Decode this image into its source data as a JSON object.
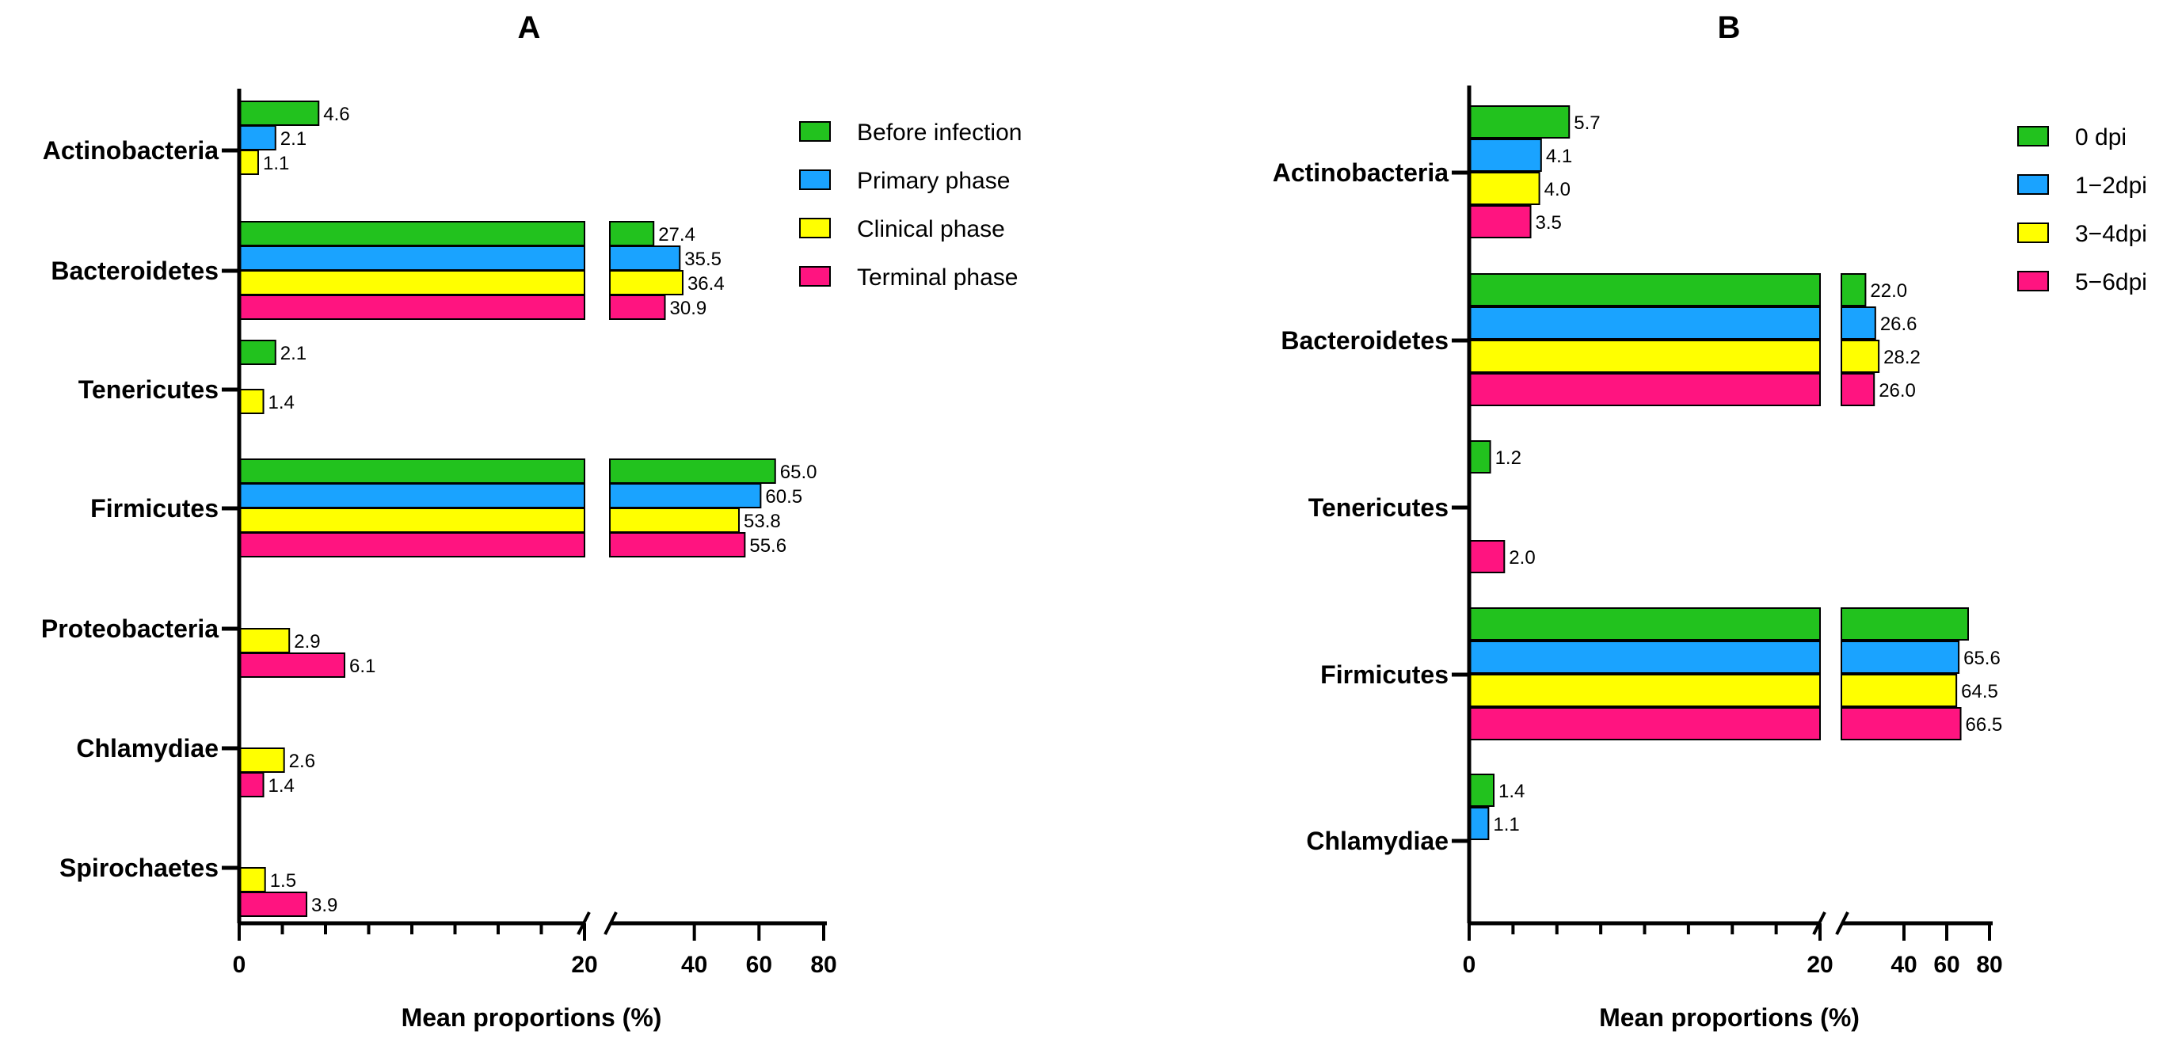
{
  "colors": {
    "green": "#22c21e",
    "blue": "#1aa3ff",
    "yellow": "#ffff00",
    "pink": "#ff1480"
  },
  "chart_data": [
    {
      "type": "bar",
      "orientation": "horizontal",
      "panel_label": "A",
      "title": "A",
      "xlabel": "Mean proportions (%)",
      "ylabel": "",
      "broken_axis": true,
      "tick_labels": [
        "0",
        "20",
        "40",
        "60",
        "80"
      ],
      "categories": [
        "Actinobacteria",
        "Bacteroidetes",
        "Tenericutes",
        "Firmicutes",
        "Proteobacteria",
        "Chlamydiae",
        "Spirochaetes"
      ],
      "legend_position": "top-right",
      "series": [
        {
          "name": "Before infection",
          "color": "green",
          "values": [
            4.6,
            27.4,
            2.1,
            65.0,
            null,
            null,
            null
          ]
        },
        {
          "name": "Primary phase",
          "color": "blue",
          "values": [
            2.1,
            35.5,
            null,
            60.5,
            null,
            null,
            null
          ]
        },
        {
          "name": "Clinical phase",
          "color": "yellow",
          "values": [
            1.1,
            36.4,
            1.4,
            53.8,
            2.9,
            2.6,
            1.5
          ]
        },
        {
          "name": "Terminal phase",
          "color": "pink",
          "values": [
            null,
            30.9,
            null,
            55.6,
            6.1,
            1.4,
            3.9
          ]
        }
      ],
      "value_labels": [
        [
          "4.6",
          "27.4",
          "2.1",
          "65.0",
          "",
          "",
          ""
        ],
        [
          "2.1",
          "35.5",
          "",
          "60.5",
          "",
          "",
          ""
        ],
        [
          "1.1",
          "36.4",
          "1.4",
          "53.8",
          "2.9",
          "2.6",
          "1.5"
        ],
        [
          "",
          "30.9",
          "",
          "55.6",
          "6.1",
          "1.4",
          "3.9"
        ]
      ]
    },
    {
      "type": "bar",
      "orientation": "horizontal",
      "panel_label": "B",
      "title": "B",
      "xlabel": "Mean proportions (%)",
      "ylabel": "",
      "broken_axis": true,
      "tick_labels": [
        "0",
        "20",
        "40",
        "60",
        "80"
      ],
      "categories": [
        "Actinobacteria",
        "Bacteroidetes",
        "Tenericutes",
        "Firmicutes",
        "Chlamydiae"
      ],
      "legend_position": "top-right",
      "series": [
        {
          "name": "0 dpi",
          "color": "green",
          "values": [
            5.7,
            22.0,
            1.2,
            70.0,
            1.4
          ]
        },
        {
          "name": "1−2dpi",
          "color": "blue",
          "values": [
            4.1,
            26.6,
            null,
            65.6,
            1.1
          ]
        },
        {
          "name": "3−4dpi",
          "color": "yellow",
          "values": [
            4.0,
            28.2,
            null,
            64.5,
            null
          ]
        },
        {
          "name": "5−6dpi",
          "color": "pink",
          "values": [
            3.5,
            26.0,
            2.0,
            66.5,
            null
          ]
        }
      ],
      "value_labels": [
        [
          "5.7",
          "22.0",
          "1.2",
          "",
          "1.4"
        ],
        [
          "4.1",
          "26.6",
          "",
          "65.6",
          "1.1"
        ],
        [
          "4.0",
          "28.2",
          "",
          "64.5",
          ""
        ],
        [
          "3.5",
          "26.0",
          "2.0",
          "66.5",
          ""
        ]
      ]
    }
  ]
}
